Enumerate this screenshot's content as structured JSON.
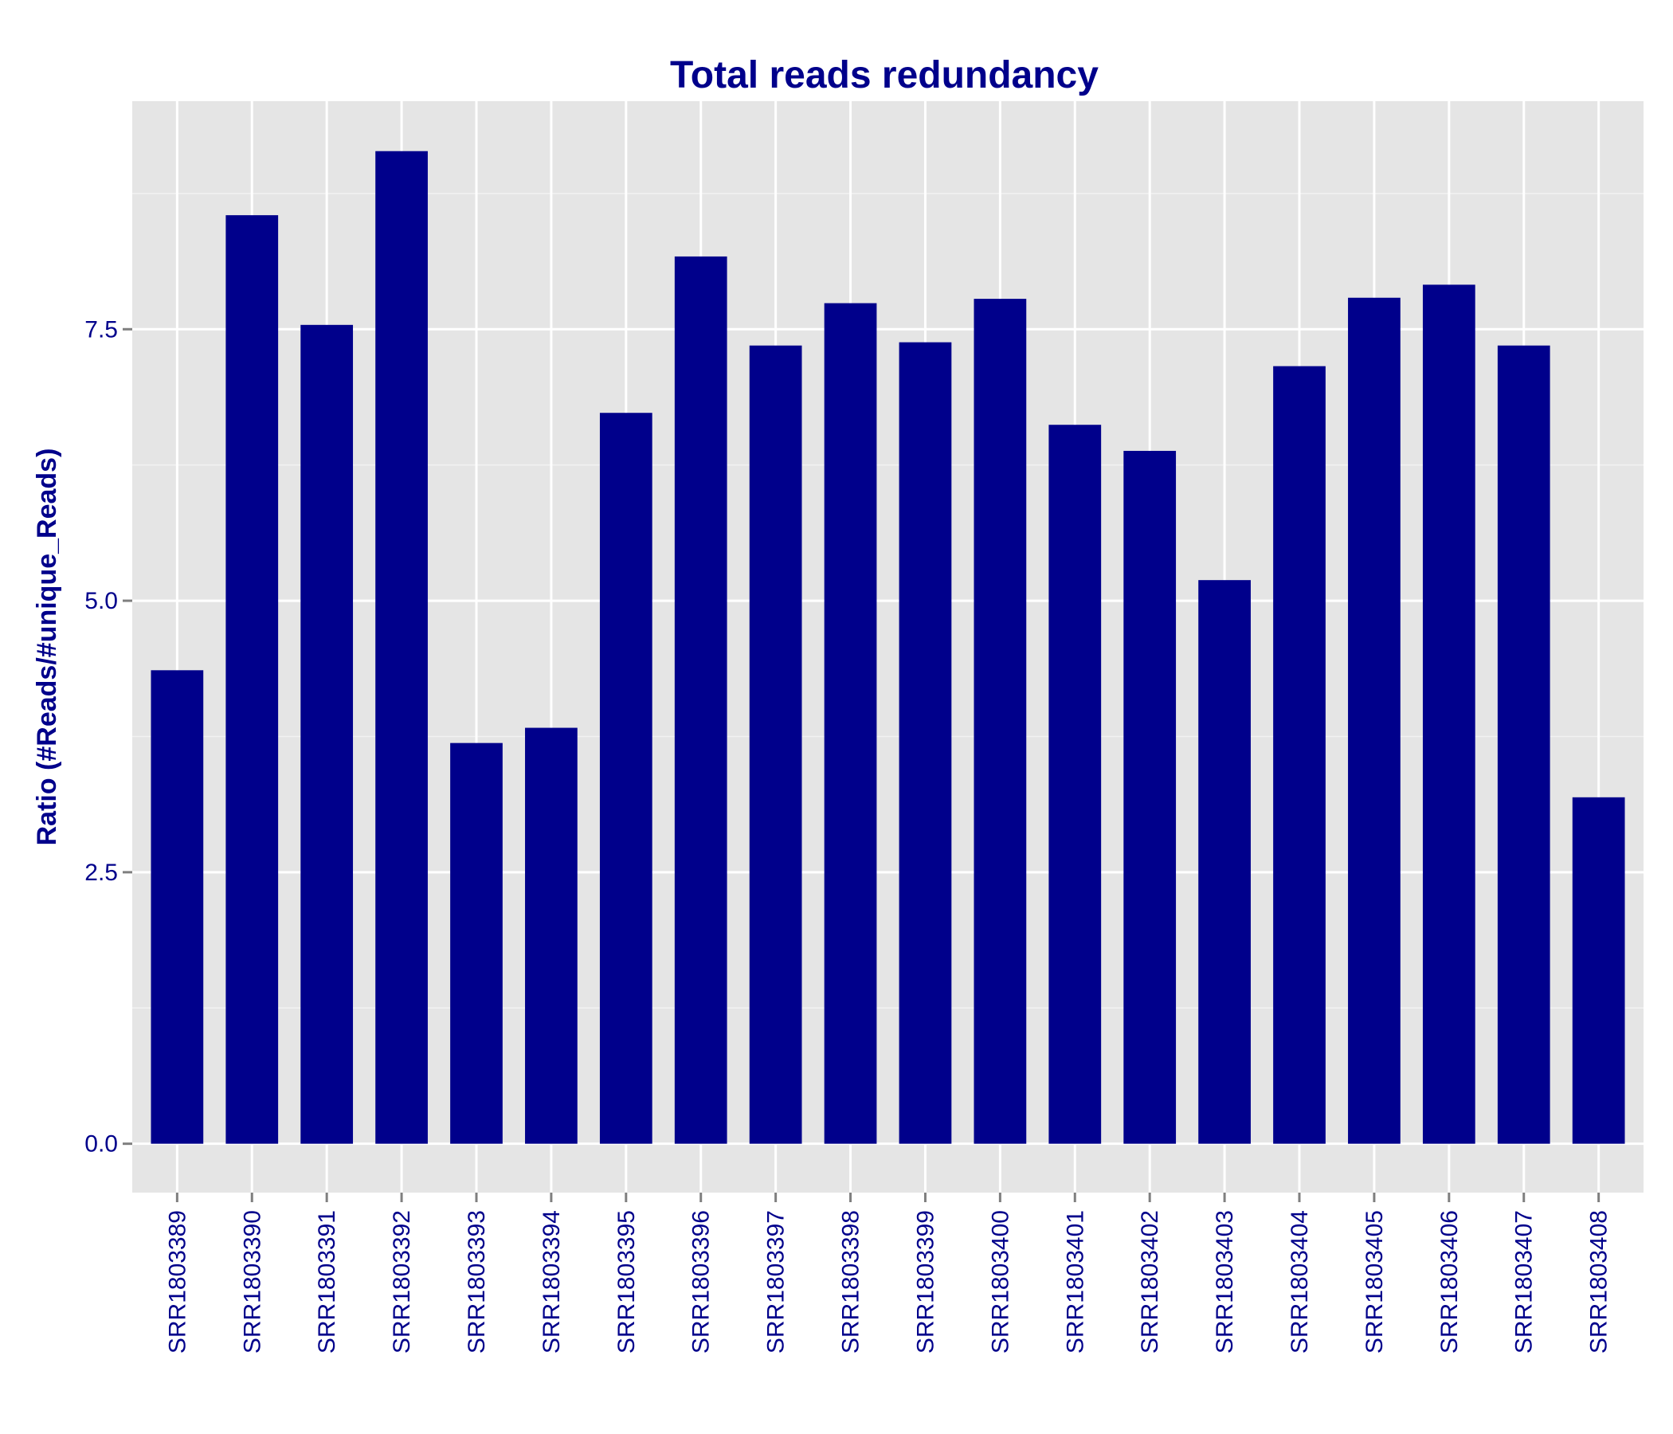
{
  "chart_data": {
    "type": "bar",
    "title": "Total reads redundancy",
    "xlabel": "",
    "ylabel": "Ratio (#Reads/#unique_Reads)",
    "ylim": [
      -0.45,
      9.6
    ],
    "yticks": [
      0.0,
      2.5,
      5.0,
      7.5
    ],
    "ytick_labels": [
      "0.0",
      "2.5",
      "5.0",
      "7.5"
    ],
    "grid": true,
    "categories": [
      "SRR1803389",
      "SRR1803390",
      "SRR1803391",
      "SRR1803392",
      "SRR1803393",
      "SRR1803394",
      "SRR1803395",
      "SRR1803396",
      "SRR1803397",
      "SRR1803398",
      "SRR1803399",
      "SRR1803400",
      "SRR1803401",
      "SRR1803402",
      "SRR1803403",
      "SRR1803404",
      "SRR1803405",
      "SRR1803406",
      "SRR1803407",
      "SRR1803408"
    ],
    "values": [
      4.36,
      8.55,
      7.54,
      9.14,
      3.69,
      3.83,
      6.73,
      8.17,
      7.35,
      7.74,
      7.38,
      7.78,
      6.62,
      6.38,
      5.19,
      7.16,
      7.79,
      7.91,
      7.35,
      3.19
    ],
    "colors": {
      "bar": "#00008B",
      "panel": "#E5E5E5",
      "grid_major": "#FFFFFF",
      "grid_minor": "#F2F2F2",
      "text": "#00008B",
      "tick": "#7F7F7F"
    }
  }
}
